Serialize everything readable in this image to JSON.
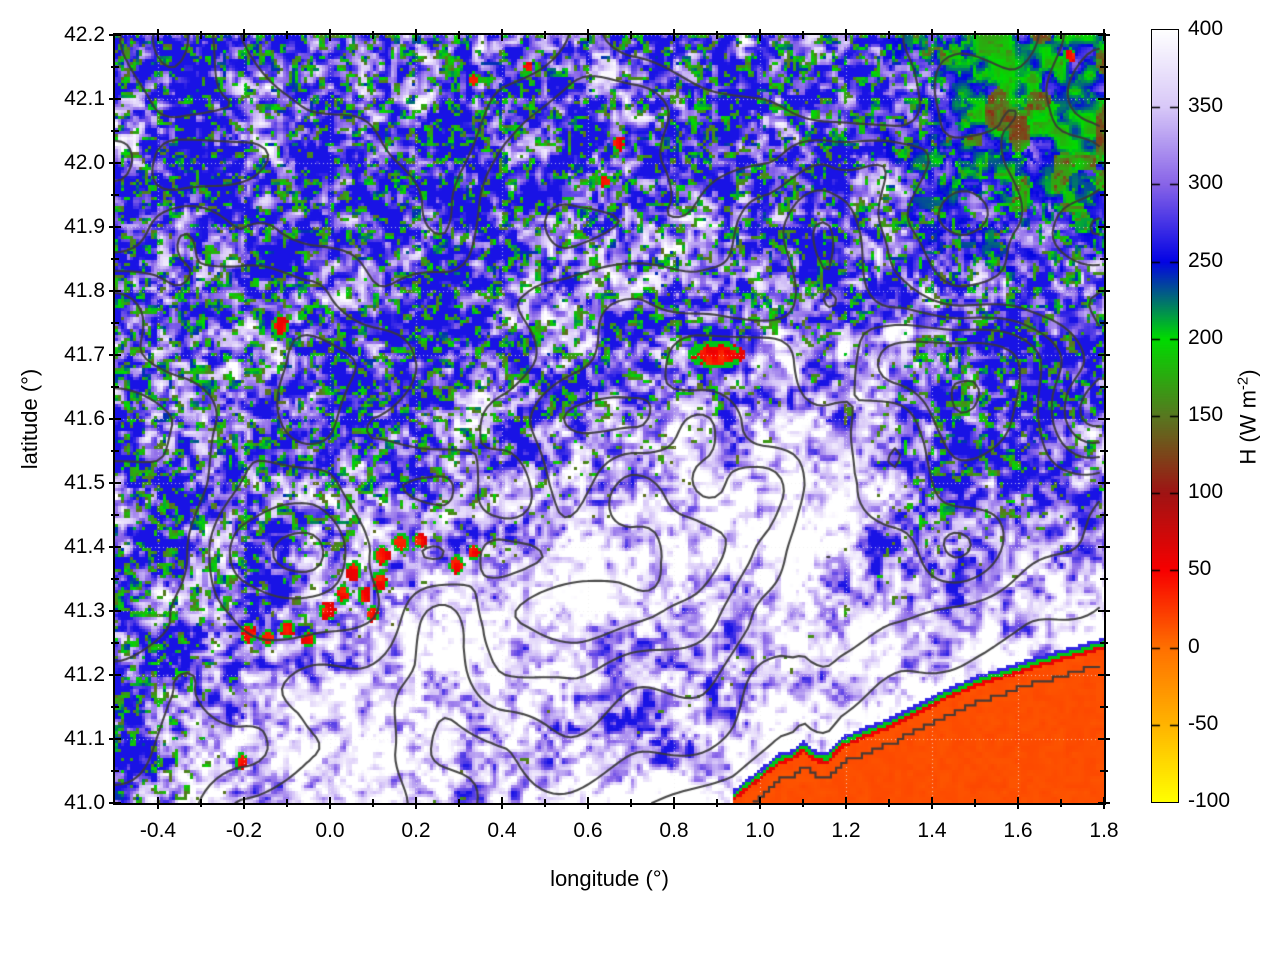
{
  "chart_data": {
    "type": "heatmap",
    "title": "",
    "xlabel": "longitude (°)",
    "ylabel": "latitude (°)",
    "x_range": [
      -0.5,
      1.8
    ],
    "y_range": [
      41.0,
      42.2
    ],
    "x_major_ticks": [
      -0.4,
      -0.2,
      0.0,
      0.2,
      0.4,
      0.6,
      0.8,
      1.0,
      1.2,
      1.4,
      1.6,
      1.8
    ],
    "x_tick_labels": [
      "-0.4",
      "-0.2",
      "0.0",
      "0.2",
      "0.4",
      "0.6",
      "0.8",
      "1.0",
      "1.2",
      "1.4",
      "1.6",
      "1.8"
    ],
    "x_minor_step": 0.1,
    "y_major_ticks": [
      41.0,
      41.1,
      41.2,
      41.3,
      41.4,
      41.5,
      41.6,
      41.7,
      41.8,
      41.9,
      42.0,
      42.1,
      42.2
    ],
    "y_tick_labels": [
      "41.0",
      "41.1",
      "41.2",
      "41.3",
      "41.4",
      "41.5",
      "41.6",
      "41.7",
      "41.8",
      "41.9",
      "42.0",
      "42.1",
      "42.2"
    ],
    "y_minor_step": 0.05,
    "grid": "dotted major",
    "legend_position": "none",
    "colorbar": {
      "side": "right",
      "label_main": "H (W m",
      "label_sup": "-2",
      "label_close": ")",
      "label_full": "H (W m⁻²)",
      "range": [
        -100,
        400
      ],
      "ticks": [
        400,
        350,
        300,
        250,
        200,
        150,
        100,
        50,
        0,
        -50,
        -100
      ],
      "tick_labels": [
        "400",
        "350",
        "300",
        "250",
        "200",
        "150",
        "100",
        "50",
        "0",
        "-50",
        "-100"
      ],
      "palette": [
        {
          "value": -100,
          "color": "#ffff00"
        },
        {
          "value": -50,
          "color": "#ffb400"
        },
        {
          "value": 0,
          "color": "#ff7000"
        },
        {
          "value": 50,
          "color": "#f80000"
        },
        {
          "value": 100,
          "color": "#a01414"
        },
        {
          "value": 150,
          "color": "#587820"
        },
        {
          "value": 200,
          "color": "#00dc00"
        },
        {
          "value": 250,
          "color": "#0404e4"
        },
        {
          "value": 300,
          "color": "#8864e8"
        },
        {
          "value": 350,
          "color": "#d8c8f8"
        },
        {
          "value": 400,
          "color": "#ffffff"
        }
      ]
    },
    "overlays": {
      "contours": {
        "color": "#3a3a3a",
        "line_width": 2,
        "description": "topographic elevation contour lines over whole land area, denser in the north"
      },
      "coastline_points": [
        [
          0.935,
          41.0
        ],
        [
          0.97,
          41.02
        ],
        [
          1.0,
          41.035
        ],
        [
          1.045,
          41.06
        ],
        [
          1.075,
          41.065
        ],
        [
          1.1,
          41.08
        ],
        [
          1.125,
          41.065
        ],
        [
          1.155,
          41.06
        ],
        [
          1.19,
          41.085
        ],
        [
          1.24,
          41.1
        ],
        [
          1.3,
          41.115
        ],
        [
          1.36,
          41.135
        ],
        [
          1.43,
          41.16
        ],
        [
          1.5,
          41.18
        ],
        [
          1.57,
          41.195
        ],
        [
          1.64,
          41.21
        ],
        [
          1.72,
          41.225
        ],
        [
          1.8,
          41.24
        ]
      ],
      "offshore_contour_offset_deg": 0.022
    },
    "field_summary": {
      "sea_H": 14,
      "sea_region": "below coastline in bottom-right corner, uniform orange",
      "land_typical_H_range": [
        260,
        400
      ],
      "white_high_H_band": "H near 350-400 along coast and in a diagonal band from (-0.1,41.1) to (1.3,41.5)",
      "blue_zone": "H near 260-310 speckled with white filaments over north and west",
      "green_specks_H": [
        160,
        230
      ],
      "northeast_green_zone": {
        "lon_min": 1.28,
        "lat_min": 41.82,
        "H_range": [
          150,
          250
        ],
        "brown_patches_H": [
          100,
          145
        ]
      },
      "red_spots_H": [
        25,
        60
      ],
      "red_spots": [
        [
          -0.19,
          41.265,
          0.014,
          0.011
        ],
        [
          -0.145,
          41.258,
          0.012,
          0.009
        ],
        [
          -0.1,
          41.272,
          0.013,
          0.01
        ],
        [
          -0.05,
          41.256,
          0.011,
          0.009
        ],
        [
          -0.005,
          41.3,
          0.013,
          0.01
        ],
        [
          0.03,
          41.326,
          0.012,
          0.01
        ],
        [
          0.055,
          41.362,
          0.013,
          0.011
        ],
        [
          0.08,
          41.325,
          0.011,
          0.009
        ],
        [
          0.1,
          41.296,
          0.011,
          0.009
        ],
        [
          0.115,
          41.346,
          0.012,
          0.012
        ],
        [
          0.122,
          41.386,
          0.013,
          0.011
        ],
        [
          0.165,
          41.406,
          0.014,
          0.01
        ],
        [
          0.21,
          41.411,
          0.011,
          0.009
        ],
        [
          0.295,
          41.372,
          0.012,
          0.01
        ],
        [
          0.335,
          41.392,
          0.01,
          0.009
        ],
        [
          0.9,
          41.7,
          0.046,
          0.014
        ],
        [
          0.64,
          41.972,
          0.01,
          0.008
        ],
        [
          0.672,
          42.03,
          0.011,
          0.009
        ],
        [
          0.335,
          42.13,
          0.009,
          0.008
        ],
        [
          -0.115,
          41.745,
          0.013,
          0.012
        ],
        [
          -0.205,
          41.065,
          0.01,
          0.009
        ],
        [
          0.46,
          42.15,
          0.008,
          0.007
        ],
        [
          1.72,
          42.168,
          0.01,
          0.008
        ]
      ]
    }
  }
}
